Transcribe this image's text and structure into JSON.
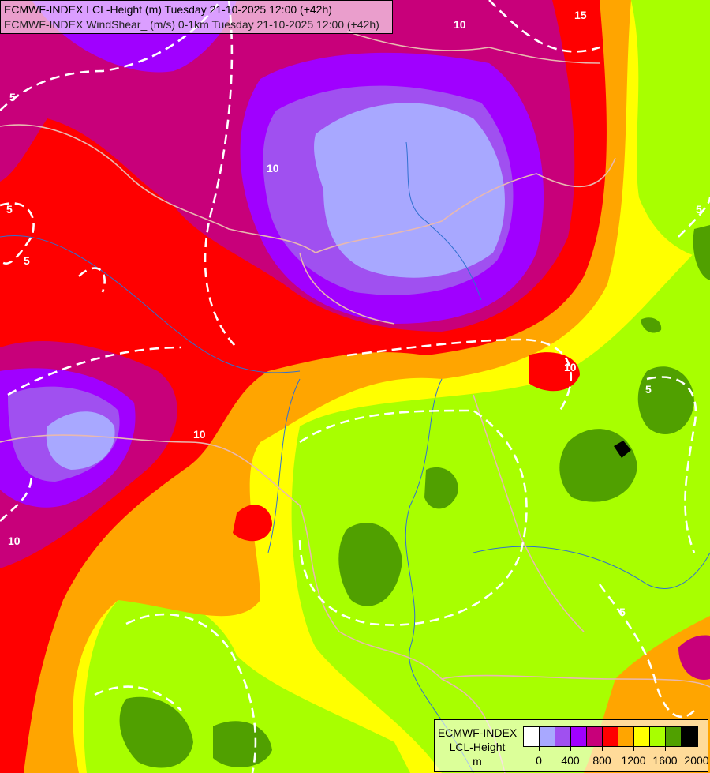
{
  "header": {
    "line1": "ECMWF-INDEX LCL-Height (m) Tuesday 21-10-2025 12:00 (+42h)",
    "line2": "ECMWF-INDEX WindShear_ (m/s) 0-1km Tuesday 21-10-2025 12:00 (+42h)"
  },
  "legend": {
    "title1": "ECMWF-INDEX",
    "title2": "LCL-Height",
    "unit": "m",
    "colors": [
      "#ffffff",
      "#a8a8ff",
      "#a050f0",
      "#a000ff",
      "#c8007a",
      "#ff0000",
      "#ffa500",
      "#ffff00",
      "#a8ff00",
      "#50a000",
      "#000000"
    ],
    "ticks": [
      "0",
      "400",
      "800",
      "1200",
      "1600",
      "2000"
    ]
  },
  "contour_labels": [
    "5",
    "10",
    "15",
    "10",
    "5",
    "5",
    "10",
    "10",
    "5",
    "10",
    "5",
    "5"
  ]
}
